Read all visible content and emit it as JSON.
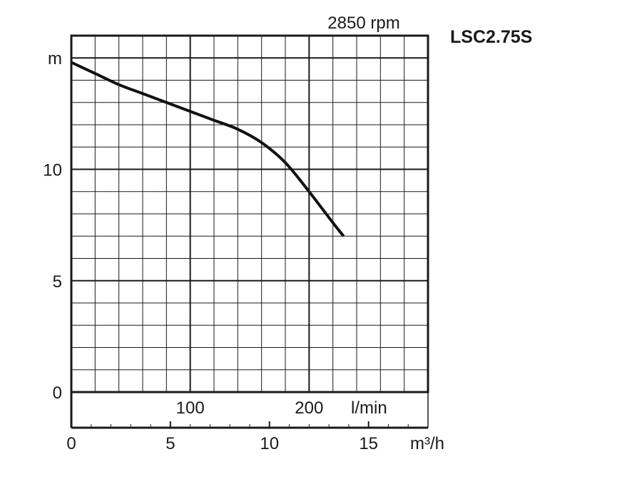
{
  "chart_data": {
    "type": "line",
    "speed_label": "2850 rpm",
    "model": "LSC2.75S",
    "y_unit": "m",
    "x_unit_lpm": "l/min",
    "x_unit_m3h": "m³/h",
    "y_ticks": [
      "0",
      "5",
      "10"
    ],
    "x_ticks_lpm": [
      "100",
      "200"
    ],
    "x_ticks_m3h": [
      "0",
      "5",
      "10",
      "15"
    ],
    "ylim": [
      0,
      16
    ],
    "xlim_lpm": [
      0,
      300
    ],
    "xlim_m3h": [
      0,
      18
    ],
    "grid": true,
    "series": [
      {
        "x": [
          0,
          20,
          40,
          60,
          80,
          100,
          120,
          140,
          160,
          180,
          200,
          220,
          229
        ],
        "y": [
          14.8,
          14.3,
          13.8,
          13.4,
          13.0,
          12.6,
          12.2,
          11.8,
          11.2,
          10.3,
          9.0,
          7.6,
          7.0
        ]
      }
    ],
    "line_color": "#111111"
  }
}
